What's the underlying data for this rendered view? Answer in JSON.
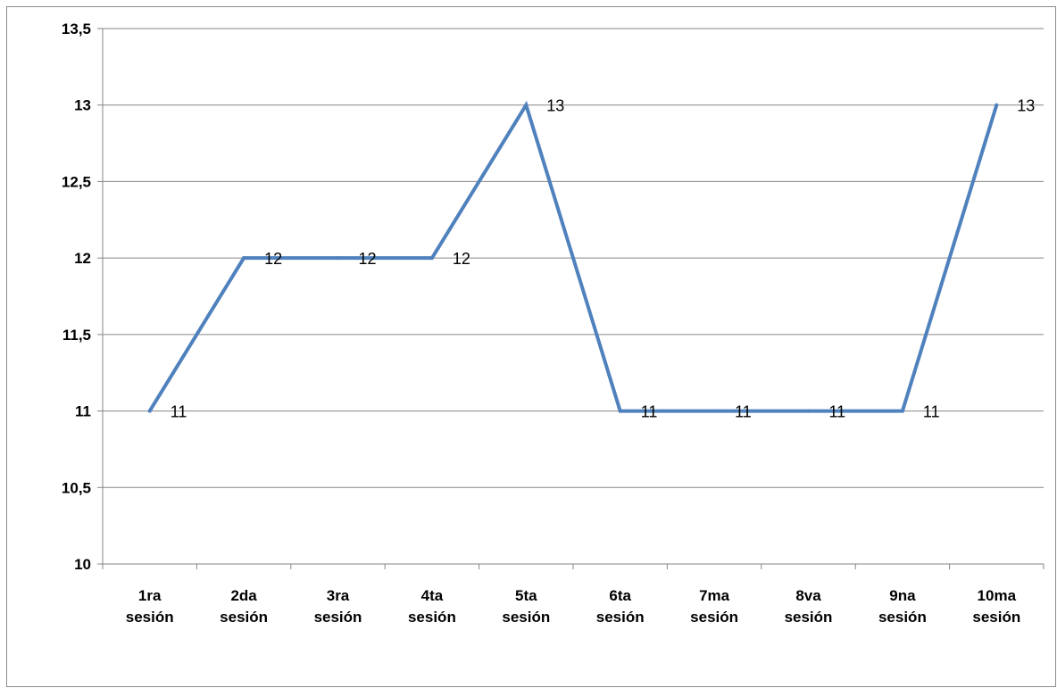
{
  "chart_data": {
    "type": "line",
    "title": "",
    "xlabel": "",
    "ylabel": "",
    "categories": [
      [
        "1ra",
        "sesión"
      ],
      [
        "2da",
        "sesión"
      ],
      [
        "3ra",
        "sesión"
      ],
      [
        "4ta",
        "sesión"
      ],
      [
        "5ta",
        "sesión"
      ],
      [
        "6ta",
        "sesión"
      ],
      [
        "7ma",
        "sesión"
      ],
      [
        "8va",
        "sesión"
      ],
      [
        "9na",
        "sesión"
      ],
      [
        "10ma",
        "sesión"
      ]
    ],
    "series": [
      {
        "values": [
          11,
          12,
          12,
          12,
          13,
          11,
          11,
          11,
          11,
          13
        ],
        "color": "#4f81bd"
      }
    ],
    "data_labels": [
      "11",
      "12",
      "12",
      "12",
      "13",
      "11",
      "11",
      "11",
      "11",
      "13"
    ],
    "ylim": [
      10,
      13.5
    ],
    "y_ticks": [
      10,
      10.5,
      11,
      11.5,
      12,
      12.5,
      13,
      13.5
    ],
    "y_tick_labels": [
      "10",
      "10,5",
      "11",
      "11,5",
      "12",
      "12,5",
      "13",
      "13,5"
    ],
    "grid": true,
    "legend": "none",
    "colors": {
      "line": "#4f81bd",
      "grid": "#868686",
      "axis": "#868686"
    }
  }
}
